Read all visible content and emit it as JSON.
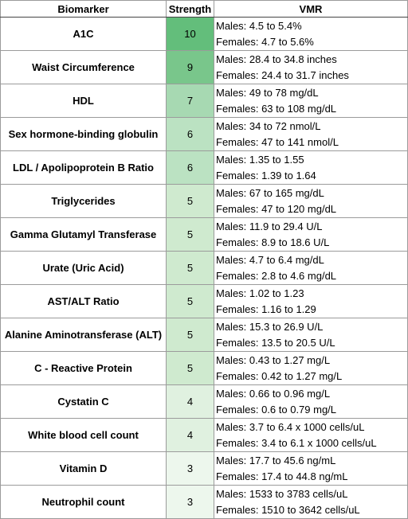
{
  "headers": {
    "biomarker": "Biomarker",
    "strength": "Strength",
    "vmr": "VMR"
  },
  "rows": [
    {
      "biomarker": "A1C",
      "strength": "10",
      "males": "Males: 4.5 to 5.4%",
      "females": "Females: 4.7 to 5.6%",
      "color": "#63be7b"
    },
    {
      "biomarker": "Waist Circumference",
      "strength": "9",
      "males": "Males: 28.4 to 34.8 inches",
      "females": "Females: 24.4 to 31.7 inches",
      "color": "#79c68b"
    },
    {
      "biomarker": "HDL",
      "strength": "7",
      "males": "Males: 49 to 78 mg/dL",
      "females": "Females: 63 to 108 mg/dL",
      "color": "#a7d9b2"
    },
    {
      "biomarker": "Sex hormone-binding globulin",
      "strength": "6",
      "males": "Males: 34 to 72 nmol/L",
      "females": "Females: 47 to 141 nmol/L",
      "color": "#bbe2c2"
    },
    {
      "biomarker": "LDL / Apolipoprotein B Ratio",
      "strength": "6",
      "males": "Males: 1.35 to 1.55",
      "females": "Females: 1.39 to 1.64",
      "color": "#bbe2c2"
    },
    {
      "biomarker": "Triglycerides",
      "strength": "5",
      "males": "Males: 67 to 165 mg/dL",
      "females": "Females: 47 to 120 mg/dL",
      "color": "#cfeacf"
    },
    {
      "biomarker": "Gamma Glutamyl Transferase",
      "strength": "5",
      "males": "Males: 11.9 to 29.4 U/L",
      "females": "Females: 8.9 to 18.6 U/L",
      "color": "#cfeacf"
    },
    {
      "biomarker": "Urate (Uric Acid)",
      "strength": "5",
      "males": "Males: 4.7 to 6.4 mg/dL",
      "females": "Females: 2.8 to 4.6 mg/dL",
      "color": "#cfeacf"
    },
    {
      "biomarker": "AST/ALT Ratio",
      "strength": "5",
      "males": "Males: 1.02 to 1.23",
      "females": "Females: 1.16 to 1.29",
      "color": "#cfeacf"
    },
    {
      "biomarker": "Alanine Aminotransferase (ALT)",
      "strength": "5",
      "males": "Males: 15.3 to 26.9 U/L",
      "females": "Females: 13.5 to 20.5 U/L",
      "color": "#cfeacf"
    },
    {
      "biomarker": "C - Reactive Protein",
      "strength": "5",
      "males": "Males: 0.43 to 1.27 mg/L",
      "females": "Females: 0.42 to 1.27 mg/L",
      "color": "#cfeacf"
    },
    {
      "biomarker": "Cystatin C",
      "strength": "4",
      "males": "Males: 0.66 to 0.96 mg/L",
      "females": "Females: 0.6 to 0.79 mg/L",
      "color": "#e0f1e0"
    },
    {
      "biomarker": "White blood cell count",
      "strength": "4",
      "males": "Males: 3.7 to 6.4 x 1000 cells/uL",
      "females": "Females: 3.4 to 6.1 x 1000 cells/uL",
      "color": "#e0f1e0"
    },
    {
      "biomarker": "Vitamin D",
      "strength": "3",
      "males": "Males: 17.7 to 45.6 ng/mL",
      "females": "Females: 17.4 to 44.8 ng/mL",
      "color": "#edf7ed"
    },
    {
      "biomarker": "Neutrophil count",
      "strength": "3",
      "males": "Males: 1533 to 3783 cells/uL",
      "females": "Females: 1510 to 3642 cells/uL",
      "color": "#edf7ed"
    }
  ]
}
